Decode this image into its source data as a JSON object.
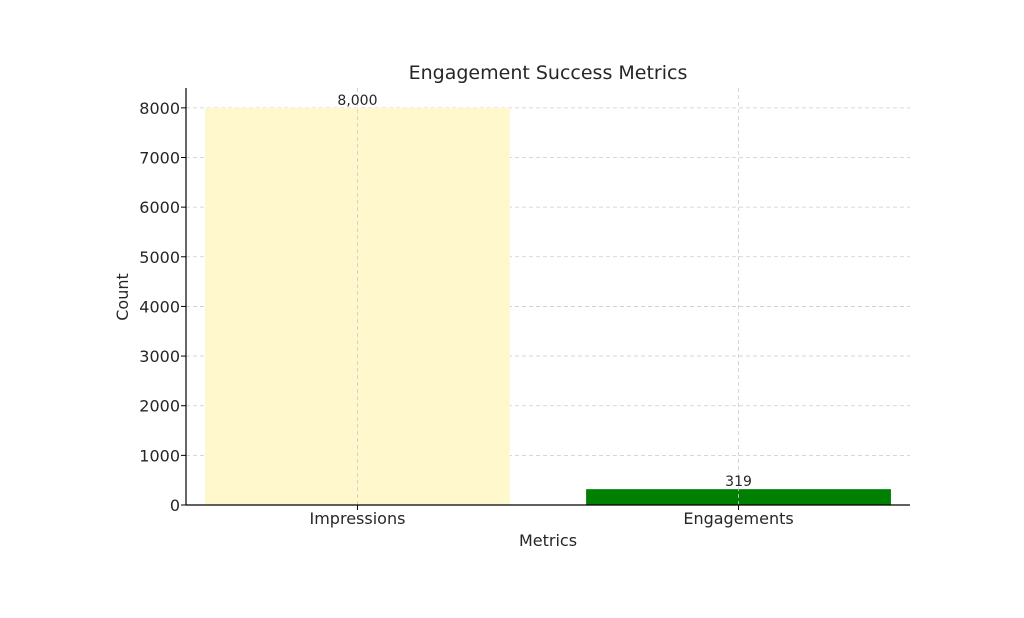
{
  "chart_data": {
    "type": "bar",
    "title": "Engagement Success Metrics",
    "xlabel": "Metrics",
    "ylabel": "Count",
    "categories": [
      "Impressions",
      "Engagements"
    ],
    "values": [
      8000,
      319
    ],
    "value_labels": [
      "8,000",
      "319"
    ],
    "colors": [
      "#fff8cc",
      "#008000"
    ],
    "ylim": [
      0,
      8400
    ],
    "yticks": [
      0,
      1000,
      2000,
      3000,
      4000,
      5000,
      6000,
      7000,
      8000
    ],
    "grid": true
  }
}
